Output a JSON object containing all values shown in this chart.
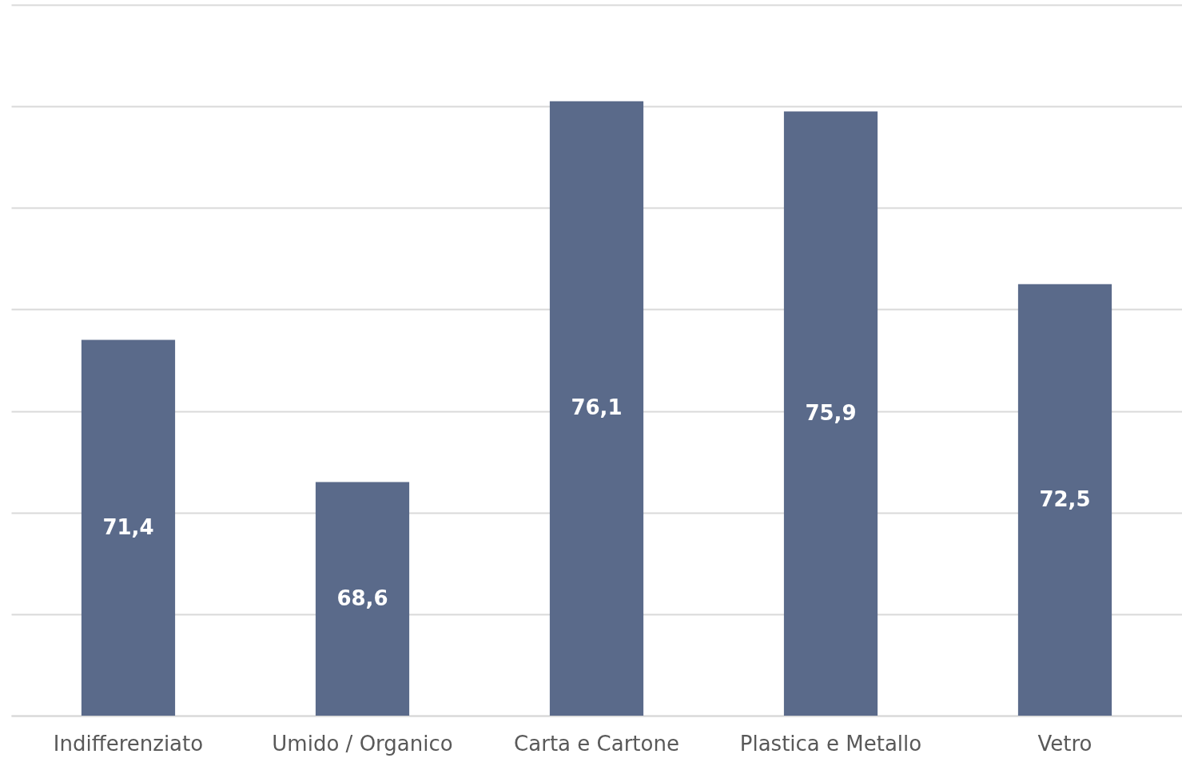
{
  "chart_data": {
    "type": "bar",
    "categories": [
      "Indifferenziato",
      "Umido / Organico",
      "Carta e Cartone",
      "Plastica e Metallo",
      "Vetro"
    ],
    "values": [
      71.4,
      68.6,
      76.1,
      75.9,
      72.5
    ],
    "value_labels": [
      "71,4",
      "68,6",
      "76,1",
      "75,9",
      "72,5"
    ],
    "color": "#5a6a8a",
    "ylim": [
      64,
      78
    ],
    "yticks": [
      {
        "value": 64,
        "label": null
      },
      {
        "value": 66,
        "label": null
      },
      {
        "value": 68,
        "label": null
      },
      {
        "value": 70,
        "label": null
      },
      {
        "value": 72,
        "label": null
      },
      {
        "value": 74,
        "label": null
      },
      {
        "value": 76,
        "label": null
      },
      {
        "value": 78,
        "label": null
      }
    ],
    "grid": "y",
    "tick_labels": "x"
  }
}
